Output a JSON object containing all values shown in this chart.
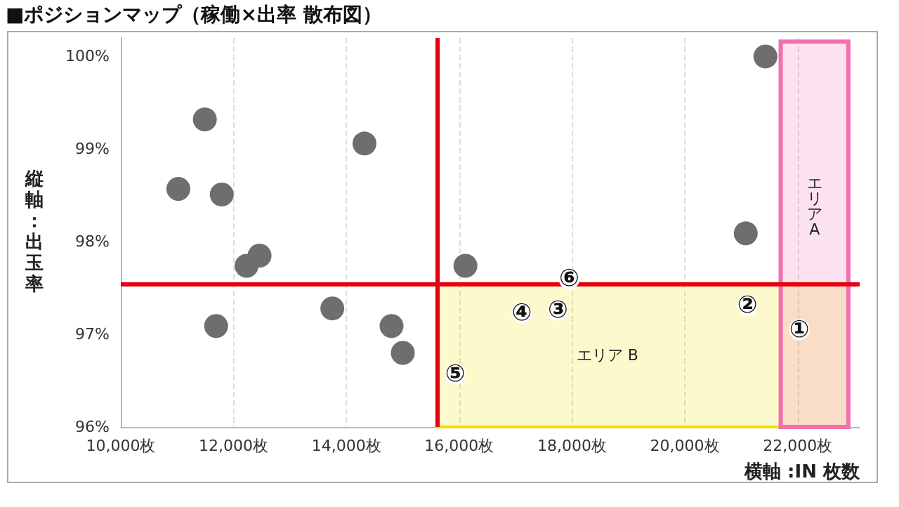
{
  "chart_data": {
    "type": "scatter",
    "title": "■ポジションマップ（稼働×出率 散布図）",
    "xlabel": "横軸 :IN 枚数",
    "ylabel": "縦軸：出玉率",
    "series": [
      {
        "color": "#6e6e6e",
        "x": [
          21430,
          11490,
          14320,
          11020,
          11790,
          12230,
          12460,
          11690,
          13750,
          14800,
          15000,
          16110,
          21080
        ],
        "values": [
          100.0,
          99.32,
          99.06,
          98.57,
          98.51,
          97.74,
          97.85,
          97.09,
          97.28,
          97.09,
          96.8,
          97.74,
          98.09
        ]
      },
      {
        "color": "#ffffff",
        "x": [
          22030,
          21110,
          17750,
          17110,
          15930,
          17950
        ],
        "values": [
          97.05,
          97.31,
          97.26,
          97.23,
          96.57,
          97.6
        ],
        "value_labels": [
          "①",
          "②",
          "③",
          "④",
          "⑤",
          "⑥"
        ]
      }
    ],
    "xlim": [
      10000,
      23100
    ],
    "ylim": [
      96,
      100.2
    ],
    "xticks": [
      {
        "value": 10000,
        "label": "10,000枚"
      },
      {
        "value": 12000,
        "label": "12,000枚"
      },
      {
        "value": 14000,
        "label": "14,000枚"
      },
      {
        "value": 16000,
        "label": "16,000枚"
      },
      {
        "value": 18000,
        "label": "18,000枚"
      },
      {
        "value": 20000,
        "label": "20,000枚"
      },
      {
        "value": 22000,
        "label": "22,000枚"
      }
    ],
    "yticks": [
      {
        "value": 96,
        "label": "96%"
      },
      {
        "value": 97,
        "label": "97%"
      },
      {
        "value": 98,
        "label": "98%"
      },
      {
        "value": 99,
        "label": "99%"
      },
      {
        "value": 100,
        "label": "100%"
      }
    ],
    "ref_lines": [
      {
        "axis": "x",
        "value": 15600,
        "color": "#e60012"
      },
      {
        "axis": "y",
        "value": 97.55,
        "color": "#e60012"
      }
    ],
    "bands": [
      {
        "axis": "x",
        "from": 15600,
        "to": 22900,
        "label": "エリア B",
        "color": "#f0e000"
      },
      {
        "axis": "x",
        "from": 21700,
        "to": 22900,
        "label": "エリアA",
        "color": "#f070b0"
      }
    ],
    "grid": "x",
    "marker": "circle"
  }
}
